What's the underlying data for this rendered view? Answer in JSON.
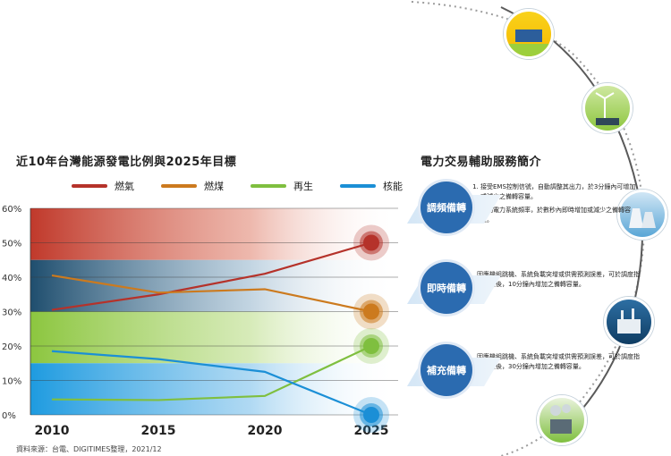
{
  "left_title": "近10年台灣能源發電比例與2025年目標",
  "right_title": "電力交易輔助服務簡介",
  "source": "資料來源：台電、DIGITIMES整理，2021/12",
  "colors": {
    "gas": "#b5322a",
    "coal": "#cc7a1e",
    "renewable": "#7fbf3f",
    "nuclear": "#1b8fd6",
    "service": "#2b6bb0"
  },
  "chart_data": {
    "type": "line",
    "x": [
      "2010",
      "2015",
      "2020",
      "2025"
    ],
    "x_values": [
      2010,
      2015,
      2020,
      2025
    ],
    "ylim": [
      0,
      60
    ],
    "yticks": [
      "0%",
      "10%",
      "20%",
      "30%",
      "40%",
      "50%",
      "60%"
    ],
    "grid": true,
    "legend_position": "top",
    "series": [
      {
        "name": "燃氣",
        "color": "#b5322a",
        "x": [
          2010,
          2015,
          2020,
          2025
        ],
        "values": [
          30.5,
          35,
          41,
          50
        ]
      },
      {
        "name": "燃煤",
        "color": "#cc7a1e",
        "x": [
          2010,
          2015,
          2020,
          2025
        ],
        "values": [
          40.5,
          35.5,
          36.5,
          30
        ]
      },
      {
        "name": "再生",
        "color": "#7fbf3f",
        "x": [
          2010,
          2015,
          2020,
          2025
        ],
        "values": [
          4.5,
          4.3,
          5.5,
          20
        ]
      },
      {
        "name": "核能",
        "color": "#1b8fd6",
        "x": [
          2010,
          2015,
          2020,
          2025
        ],
        "values": [
          18.5,
          16.2,
          12.5,
          0
        ]
      }
    ]
  },
  "services": [
    {
      "name": "調頻備轉",
      "items": [
        "接受EMS控制信號，自動調整其出力，於3分鐘內可增加或減少之備轉容量。",
        "偵測電力系統頻率，於數秒內即時增加或減少之備轉容量。"
      ]
    },
    {
      "name": "即時備轉",
      "text": "因應機組跳機、系統負載突增或供需預測誤差，可於調度指令下達後，10分鐘內增加之備轉容量。"
    },
    {
      "name": "補充備轉",
      "text": "因應機組跳機、系統負載突增或供需預測誤差，可於調度指令下達後，30分鐘內增加之備轉容量。"
    }
  ],
  "energy_icons": [
    "solar-icon",
    "wind-turbine-icon",
    "nuclear-plant-icon",
    "thermal-plant-icon",
    "gas-plant-icon"
  ]
}
